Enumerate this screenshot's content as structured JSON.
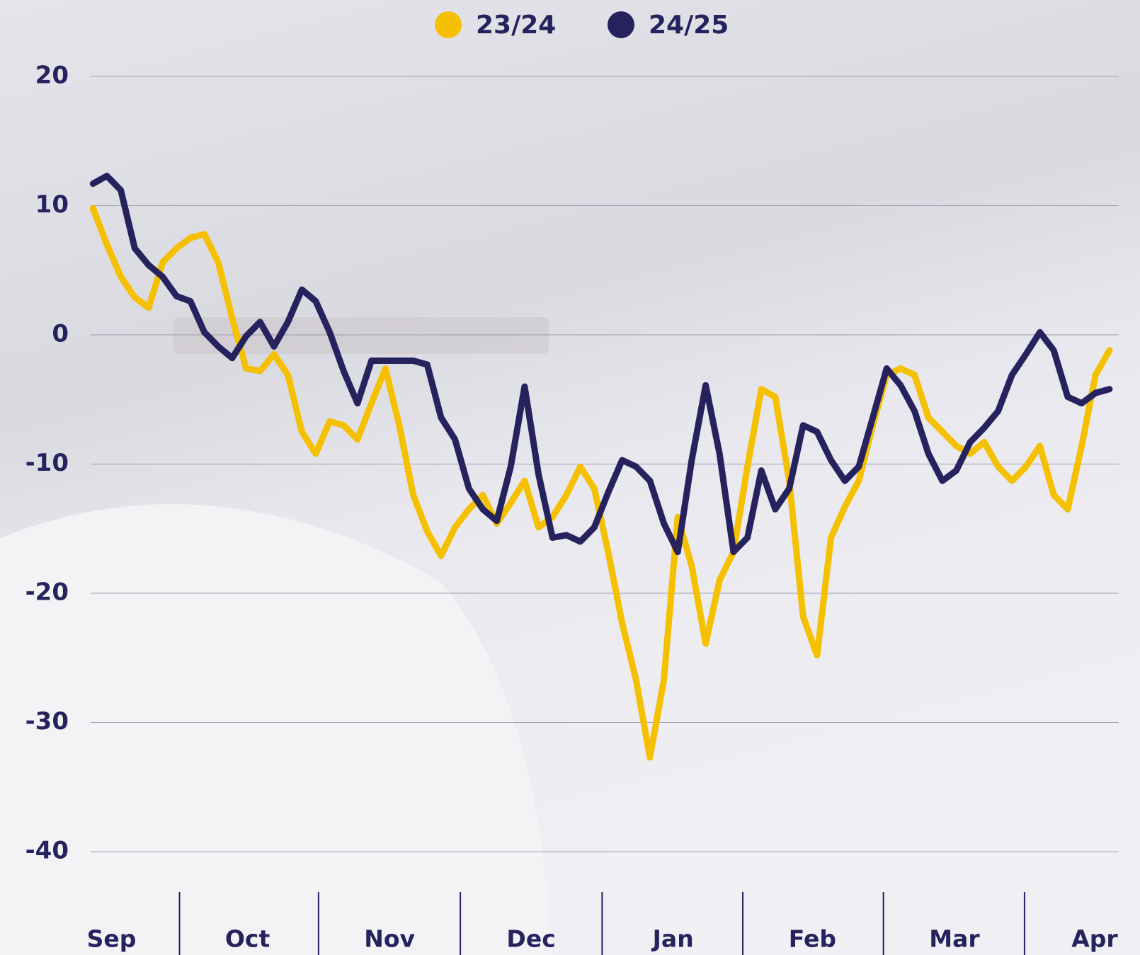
{
  "chart_data": {
    "type": "line",
    "x": [
      12,
      15,
      18,
      21,
      24,
      27,
      30,
      33,
      36,
      39,
      42,
      45,
      48,
      51,
      54,
      57,
      60,
      63,
      66,
      69,
      72,
      75,
      78,
      81,
      84,
      87,
      90,
      93,
      96,
      99,
      102,
      105,
      108,
      111,
      114,
      117,
      120,
      123,
      126,
      129,
      132,
      135,
      138,
      141,
      144,
      147,
      150,
      153,
      156,
      159,
      162,
      165,
      168,
      171,
      174,
      177,
      180,
      183,
      186,
      189,
      192,
      195,
      198,
      201,
      204,
      207,
      210,
      213,
      216,
      219,
      222,
      225,
      228,
      231
    ],
    "xlim": [
      11.5,
      233
    ],
    "xticks": [
      {
        "value": 16,
        "label": "Sep"
      },
      {
        "value": 45.3,
        "label": "Oct"
      },
      {
        "value": 75.9,
        "label": "Nov"
      },
      {
        "value": 106.4,
        "label": "Dec"
      },
      {
        "value": 137,
        "label": "Jan"
      },
      {
        "value": 167,
        "label": "Feb"
      },
      {
        "value": 197.6,
        "label": "Mar"
      },
      {
        "value": 227.8,
        "label": "Apr"
      }
    ],
    "ylim": [
      -40,
      20
    ],
    "yticks": [
      20,
      10,
      0,
      -10,
      -20,
      -30,
      -40
    ],
    "grid": true,
    "series": [
      {
        "name": "23/24",
        "color": "#f5c000",
        "values": [
          9.8,
          7.0,
          4.5,
          2.9,
          2.1,
          5.6,
          6.7,
          7.5,
          7.8,
          5.6,
          1.3,
          -2.6,
          -2.8,
          -1.5,
          -3.1,
          -7.5,
          -9.2,
          -6.7,
          -7.0,
          -8.1,
          -5.3,
          -2.6,
          -7.0,
          -12.4,
          -15.2,
          -17.1,
          -14.9,
          -13.5,
          -12.4,
          -14.6,
          -13.0,
          -11.3,
          -14.9,
          -14.1,
          -12.4,
          -10.2,
          -11.9,
          -16.8,
          -22.3,
          -26.7,
          -32.7,
          -26.7,
          -14.1,
          -17.9,
          -23.9,
          -19.0,
          -16.8,
          -10.2,
          -4.2,
          -4.8,
          -11.3,
          -21.8,
          -24.8,
          -15.7,
          -13.3,
          -11.3,
          -7.0,
          -3.1,
          -2.6,
          -3.1,
          -6.4,
          -7.5,
          -8.6,
          -9.2,
          -8.3,
          -10.2,
          -11.3,
          -10.2,
          -8.6,
          -12.4,
          -13.5,
          -8.6,
          -3.1,
          -1.2
        ]
      },
      {
        "name": "24/25",
        "color": "#25225e",
        "values": [
          11.7,
          12.3,
          11.2,
          6.7,
          5.4,
          4.5,
          3.0,
          2.6,
          0.2,
          -0.9,
          -1.8,
          -0.1,
          1.0,
          -0.9,
          1.0,
          3.5,
          2.6,
          0.2,
          -2.8,
          -5.3,
          -2.0,
          -2.0,
          -2.0,
          -2.0,
          -2.3,
          -6.4,
          -8.1,
          -11.9,
          -13.5,
          -14.4,
          -10.2,
          -4.0,
          -10.8,
          -15.7,
          -15.5,
          -16.0,
          -14.9,
          -12.2,
          -9.7,
          -10.2,
          -11.3,
          -14.6,
          -16.8,
          -9.7,
          -3.9,
          -9.2,
          -16.8,
          -15.7,
          -10.5,
          -13.5,
          -11.9,
          -7.0,
          -7.5,
          -9.7,
          -11.3,
          -10.2,
          -6.4,
          -2.6,
          -3.9,
          -5.9,
          -9.2,
          -11.3,
          -10.5,
          -8.3,
          -7.2,
          -5.9,
          -3.1,
          -1.5,
          0.2,
          -1.2,
          -4.8,
          -5.3,
          -4.5,
          -4.2
        ]
      }
    ]
  }
}
